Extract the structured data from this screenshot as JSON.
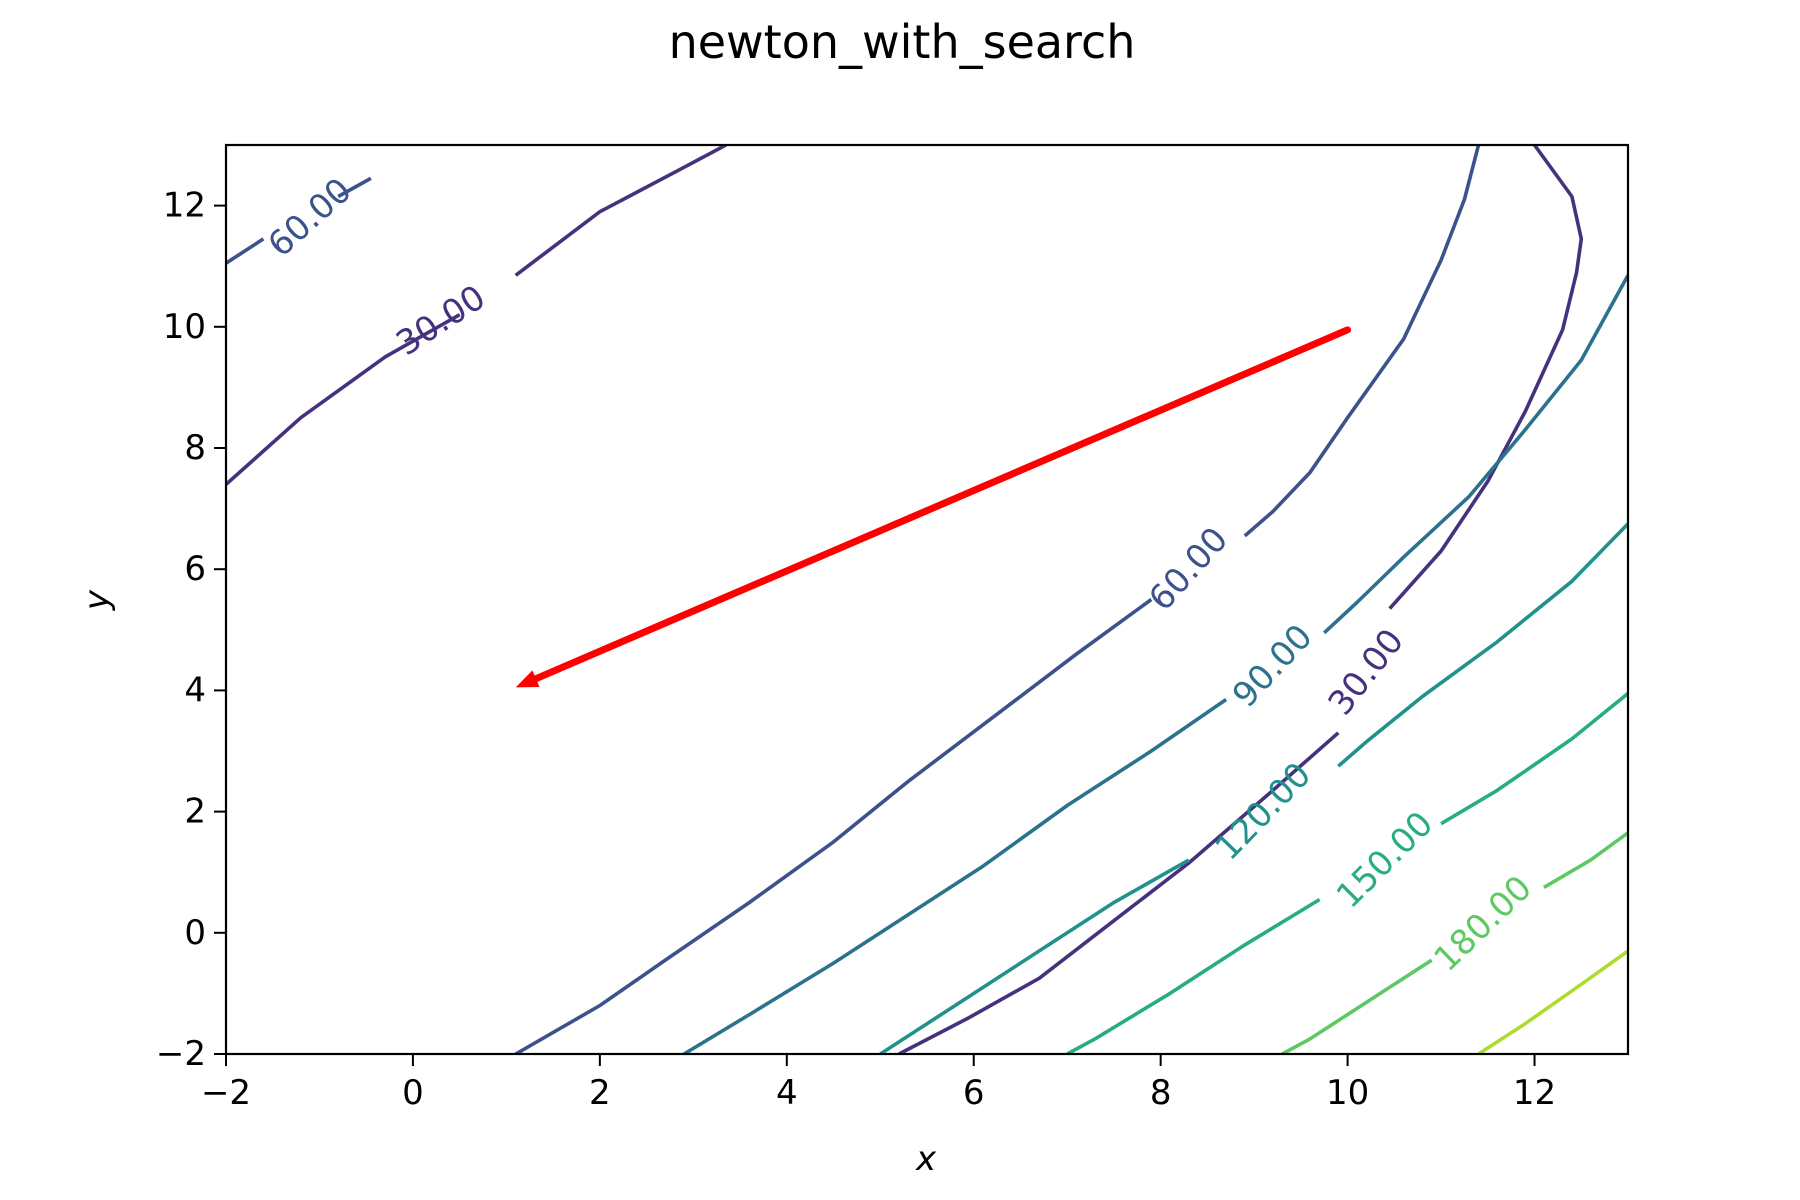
{
  "chart_data": {
    "type": "contour",
    "title": "newton_with_search",
    "xlabel": "x",
    "ylabel": "y",
    "xlim": [
      -2,
      13
    ],
    "ylim": [
      -2,
      13
    ],
    "xticks": [
      -2,
      0,
      2,
      4,
      6,
      8,
      10,
      12
    ],
    "yticks": [
      -2,
      0,
      2,
      4,
      6,
      8,
      10,
      12
    ],
    "xtick_labels": [
      "−2",
      "0",
      "2",
      "4",
      "6",
      "8",
      "10",
      "12"
    ],
    "ytick_labels": [
      "−2",
      "0",
      "2",
      "4",
      "6",
      "8",
      "10",
      "12"
    ],
    "grid": false,
    "contour_levels": [
      {
        "level": 30,
        "label": "30.00",
        "color": "#46317e",
        "lines": [
          [
            [
              -2,
              7.4
            ],
            [
              -1.2,
              8.5
            ],
            [
              -0.3,
              9.5
            ],
            [
              0.5,
              10.2
            ]
          ],
          [
            [
              1.1,
              10.85
            ],
            [
              2.0,
              11.9
            ],
            [
              2.8,
              12.55
            ],
            [
              3.35,
              13
            ]
          ],
          [
            [
              12.0,
              13
            ],
            [
              12.4,
              12.15
            ],
            [
              12.5,
              11.45
            ],
            [
              12.45,
              10.9
            ],
            [
              12.3,
              9.95
            ],
            [
              11.9,
              8.6
            ],
            [
              11.5,
              7.45
            ],
            [
              11.0,
              6.3
            ],
            [
              10.45,
              5.35
            ]
          ],
          [
            [
              9.9,
              3.3
            ],
            [
              9.2,
              2.35
            ],
            [
              8.3,
              1.15
            ],
            [
              7.5,
              0.2
            ],
            [
              6.7,
              -0.75
            ],
            [
              5.95,
              -1.4
            ],
            [
              5.2,
              -2
            ]
          ]
        ],
        "labels": [
          {
            "text": "30.00",
            "x": 0.3,
            "y": 10.1,
            "angle": -33
          },
          {
            "text": "30.00",
            "x": 10.2,
            "y": 4.3,
            "angle": -52
          }
        ]
      },
      {
        "level": 60,
        "label": "60.00",
        "color": "#3b528b",
        "lines": [
          [
            [
              -2,
              11.05
            ],
            [
              -1.6,
              11.45
            ]
          ],
          [
            [
              -0.8,
              12.15
            ],
            [
              -0.45,
              12.45
            ]
          ],
          [
            [
              11.4,
              13
            ],
            [
              11.25,
              12.1
            ],
            [
              11.0,
              11.1
            ],
            [
              10.6,
              9.8
            ],
            [
              10.0,
              8.5
            ],
            [
              9.6,
              7.6
            ],
            [
              9.2,
              6.95
            ],
            [
              8.9,
              6.55
            ]
          ],
          [
            [
              7.9,
              5.5
            ],
            [
              7.1,
              4.6
            ],
            [
              6.2,
              3.55
            ],
            [
              5.3,
              2.5
            ],
            [
              4.5,
              1.5
            ],
            [
              3.6,
              0.5
            ],
            [
              2.7,
              -0.45
            ],
            [
              2.0,
              -1.2
            ],
            [
              1.1,
              -2
            ]
          ]
        ],
        "labels": [
          {
            "text": "60.00",
            "x": -1.1,
            "y": 11.8,
            "angle": -42
          },
          {
            "text": "60.00",
            "x": 8.3,
            "y": 6.0,
            "angle": -48
          }
        ]
      },
      {
        "level": 90,
        "label": "90.00",
        "color": "#2c728e",
        "lines": [
          [
            [
              13,
              10.85
            ],
            [
              12.5,
              9.45
            ],
            [
              11.9,
              8.3
            ],
            [
              11.3,
              7.2
            ],
            [
              10.6,
              6.2
            ],
            [
              10.1,
              5.45
            ],
            [
              9.75,
              4.95
            ]
          ],
          [
            [
              8.7,
              3.85
            ],
            [
              7.9,
              3.0
            ],
            [
              7.0,
              2.1
            ],
            [
              6.1,
              1.1
            ],
            [
              5.3,
              0.3
            ],
            [
              4.5,
              -0.5
            ],
            [
              3.6,
              -1.35
            ],
            [
              2.9,
              -2
            ]
          ]
        ],
        "labels": [
          {
            "text": "90.00",
            "x": 9.2,
            "y": 4.4,
            "angle": -47
          }
        ]
      },
      {
        "level": 120,
        "label": "120.00",
        "color": "#21918c",
        "lines": [
          [
            [
              13,
              6.75
            ],
            [
              12.4,
              5.8
            ],
            [
              11.6,
              4.8
            ],
            [
              10.8,
              3.9
            ],
            [
              10.2,
              3.15
            ],
            [
              9.9,
              2.75
            ]
          ],
          [
            [
              8.3,
              1.2
            ],
            [
              7.5,
              0.5
            ],
            [
              6.8,
              -0.2
            ],
            [
              5.9,
              -1.1
            ],
            [
              5.0,
              -2
            ]
          ]
        ],
        "labels": [
          {
            "text": "120.00",
            "x": 9.1,
            "y": 2.0,
            "angle": -46
          }
        ]
      },
      {
        "level": 150,
        "label": "150.00",
        "color": "#27ad81",
        "lines": [
          [
            [
              13,
              3.95
            ],
            [
              12.4,
              3.2
            ],
            [
              11.6,
              2.35
            ],
            [
              11.0,
              1.8
            ]
          ],
          [
            [
              9.7,
              0.55
            ],
            [
              8.9,
              -0.2
            ],
            [
              8.1,
              -1.0
            ],
            [
              7.3,
              -1.75
            ],
            [
              7.0,
              -2
            ]
          ]
        ],
        "labels": [
          {
            "text": "150.00",
            "x": 10.4,
            "y": 1.2,
            "angle": -45
          }
        ]
      },
      {
        "level": 180,
        "label": "180.00",
        "color": "#5ec962",
        "lines": [
          [
            [
              13,
              1.65
            ],
            [
              12.6,
              1.2
            ],
            [
              12.1,
              0.75
            ]
          ],
          [
            [
              10.9,
              -0.45
            ],
            [
              10.3,
              -1.05
            ],
            [
              9.6,
              -1.75
            ],
            [
              9.3,
              -2
            ]
          ]
        ],
        "labels": [
          {
            "text": "180.00",
            "x": 11.45,
            "y": 0.15,
            "angle": -44
          }
        ]
      },
      {
        "level": 210,
        "label": "",
        "color": "#addc30",
        "lines": [
          [
            [
              13,
              -0.3
            ],
            [
              12.5,
              -0.85
            ],
            [
              11.9,
              -1.5
            ],
            [
              11.4,
              -2
            ]
          ]
        ],
        "labels": []
      }
    ],
    "arrow": {
      "from": [
        10.0,
        9.95
      ],
      "to": [
        1.1,
        4.05
      ],
      "color": "#ff0000"
    }
  }
}
